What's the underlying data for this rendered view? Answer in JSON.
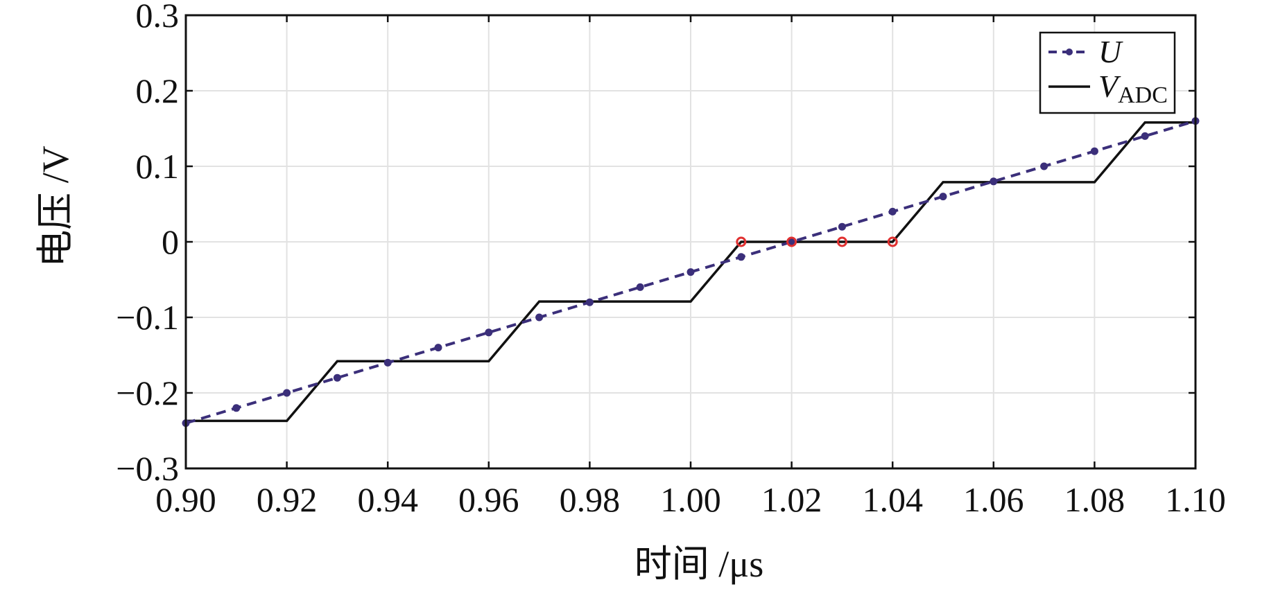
{
  "chart_data": {
    "type": "line",
    "title": "",
    "xlabel": "时间 /μs",
    "ylabel": "电压 /V",
    "xlim": [
      0.9,
      1.1
    ],
    "ylim": [
      -0.3,
      0.3
    ],
    "xticks": [
      "0.90",
      "0.92",
      "0.94",
      "0.96",
      "0.98",
      "1.00",
      "1.02",
      "1.04",
      "1.06",
      "1.08",
      "1.10"
    ],
    "yticks": [
      "0.3",
      "0.2",
      "0.1",
      "0",
      "−0.1",
      "−0.2",
      "−0.3"
    ],
    "grid": true,
    "legend_position": "top-right",
    "colors": {
      "U": "#3b2f7a",
      "VADC": "#111111",
      "highlight": "#e03030",
      "grid": "#e2e2e2"
    },
    "series": [
      {
        "name": "U",
        "style": "dashed-with-markers",
        "x": [
          0.9,
          0.91,
          0.92,
          0.93,
          0.94,
          0.95,
          0.96,
          0.97,
          0.98,
          0.99,
          1.0,
          1.01,
          1.02,
          1.03,
          1.04,
          1.05,
          1.06,
          1.07,
          1.08,
          1.09,
          1.1
        ],
        "y": [
          -0.24,
          -0.22,
          -0.2,
          -0.18,
          -0.16,
          -0.14,
          -0.12,
          -0.1,
          -0.08,
          -0.06,
          -0.04,
          -0.02,
          0.0,
          0.02,
          0.04,
          0.06,
          0.08,
          0.1,
          0.12,
          0.14,
          0.16
        ]
      },
      {
        "name": "V",
        "name_subscript": "ADC",
        "style": "solid",
        "x": [
          0.9,
          0.92,
          0.93,
          0.96,
          0.97,
          1.0,
          1.01,
          1.04,
          1.05,
          1.08,
          1.09,
          1.1
        ],
        "y": [
          -0.237,
          -0.237,
          -0.158,
          -0.158,
          -0.079,
          -0.079,
          0.0,
          0.0,
          0.079,
          0.079,
          0.158,
          0.158
        ]
      }
    ],
    "highlighted_points": {
      "x": [
        1.01,
        1.02,
        1.03,
        1.04
      ],
      "y": [
        0.0,
        0.0,
        0.0,
        0.0
      ]
    }
  }
}
